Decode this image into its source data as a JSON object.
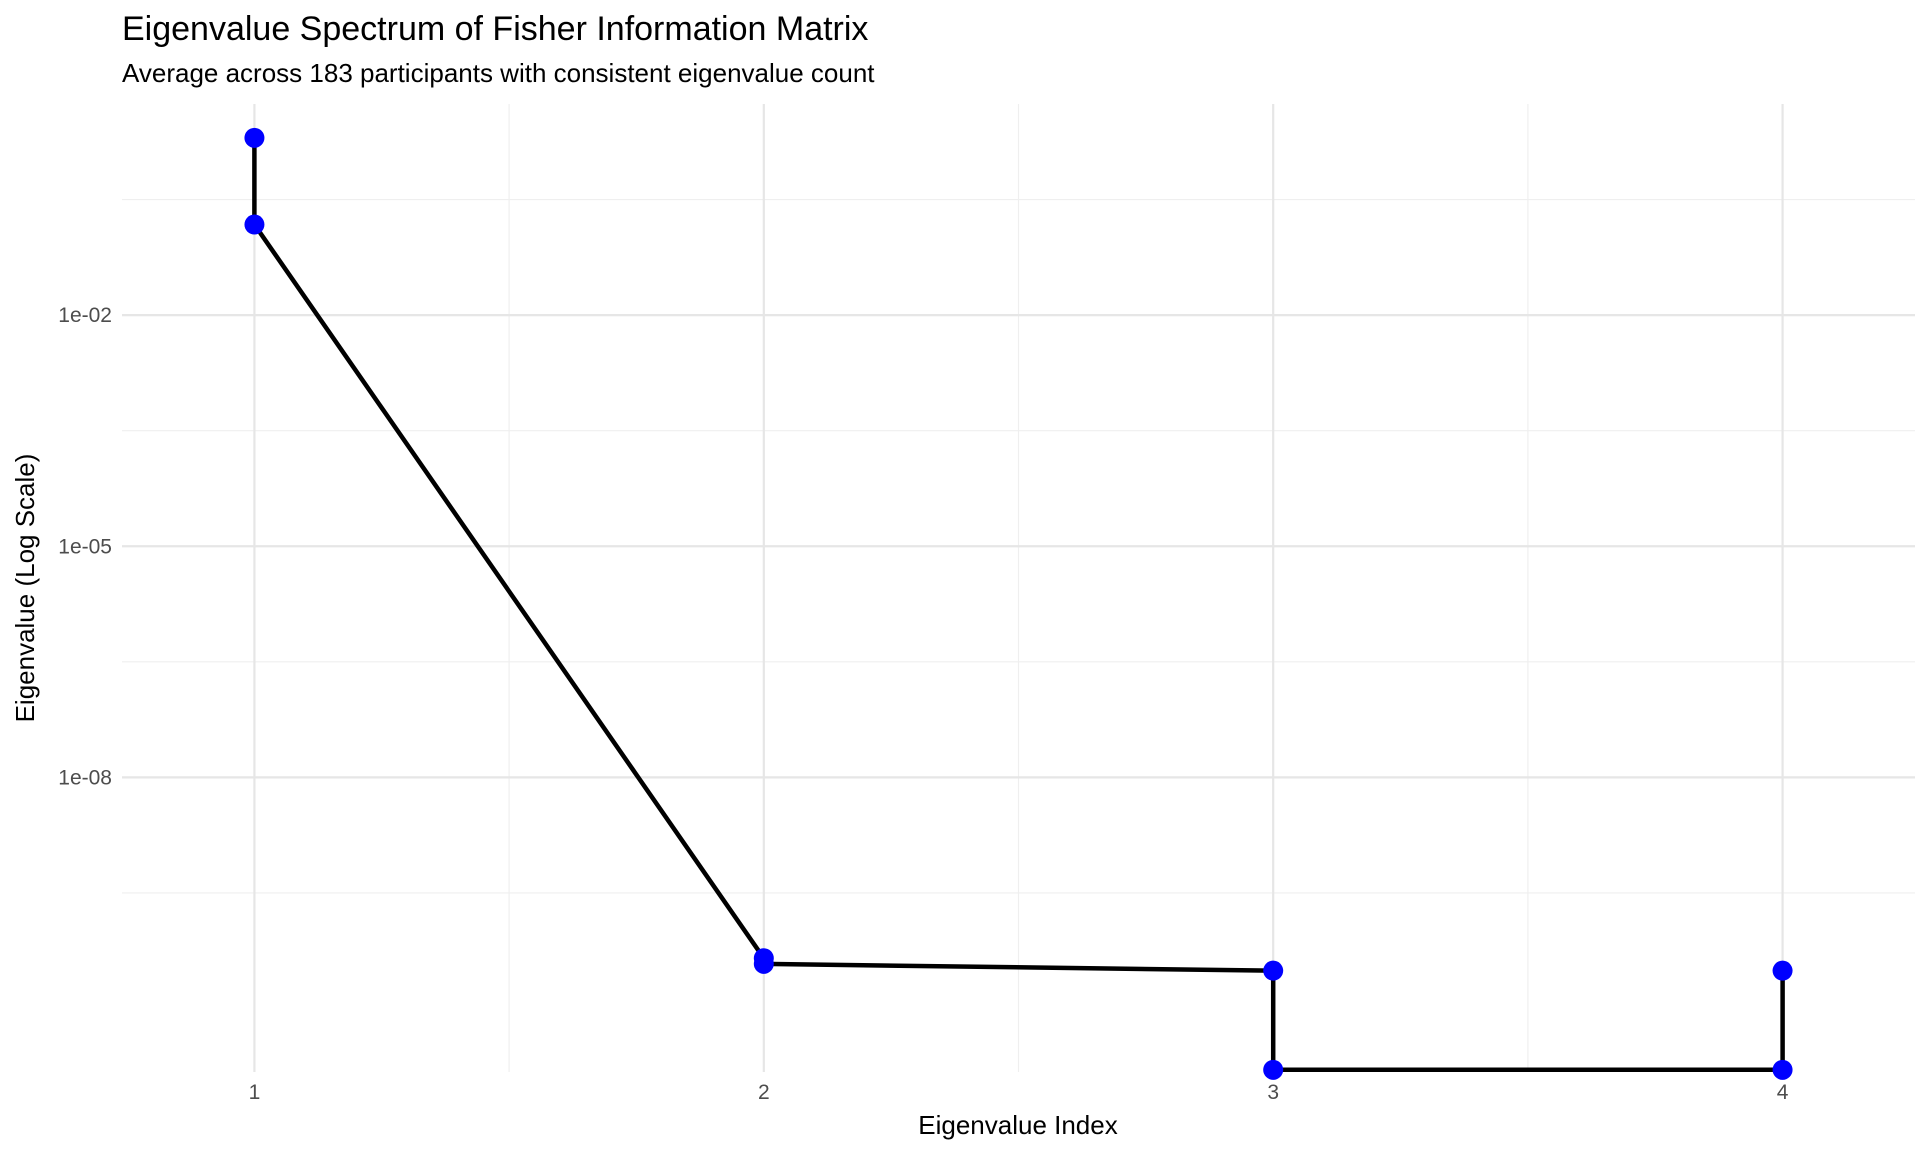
{
  "chart_data": {
    "type": "line",
    "title": "Eigenvalue Spectrum of Fisher Information Matrix",
    "subtitle": "Average across 183 participants with consistent eigenvalue count",
    "xlabel": "Eigenvalue Index",
    "ylabel": "Eigenvalue (Log Scale)",
    "y_scale": "log10",
    "grid": true,
    "legend": "none",
    "xlim": [
      0.74,
      4.26
    ],
    "ylim": [
      1.5e-12,
      5.5
    ],
    "x_ticks": [
      "1",
      "2",
      "3",
      "4"
    ],
    "y_ticks": [
      {
        "label": "1e-02",
        "value": 0.01
      },
      {
        "label": "1e-05",
        "value": 1e-05
      },
      {
        "label": "1e-08",
        "value": 1e-08
      }
    ],
    "line_color": "#000000",
    "point_color": "#0000ff",
    "points": [
      {
        "x": 1,
        "y": 2.0
      },
      {
        "x": 1,
        "y": 0.15
      },
      {
        "x": 2,
        "y": 4.5e-11
      },
      {
        "x": 2,
        "y": 3.8e-11
      },
      {
        "x": 3,
        "y": 3.1e-11
      },
      {
        "x": 3,
        "y": 1.6e-12
      },
      {
        "x": 4,
        "y": 1.6e-12
      },
      {
        "x": 4,
        "y": 3.1e-11
      }
    ]
  }
}
